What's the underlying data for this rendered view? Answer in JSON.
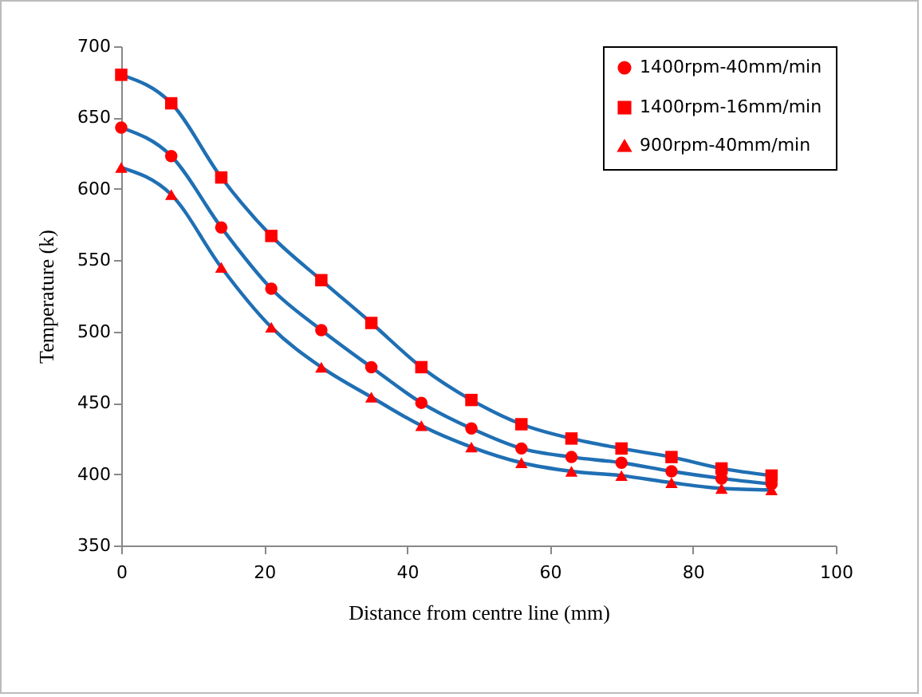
{
  "chart_data": {
    "type": "line",
    "xlabel": "Distance from centre line (mm)",
    "ylabel": "Temperature (k)",
    "x": [
      0,
      7,
      14,
      21,
      28,
      35,
      42,
      49,
      56,
      63,
      70,
      77,
      84,
      91
    ],
    "series": [
      {
        "name": "1400rpm-40mm/min",
        "color": "#ff0000",
        "marker": "circle",
        "values": [
          643,
          623,
          573,
          530,
          501,
          475,
          450,
          432,
          418,
          412,
          408,
          402,
          397,
          393
        ]
      },
      {
        "name": "1400rpm-16mm/min",
        "color": "#ff0000",
        "marker": "square",
        "values": [
          680,
          660,
          608,
          567,
          536,
          506,
          475,
          452,
          435,
          425,
          418,
          412,
          404,
          399
        ]
      },
      {
        "name": "900rpm-40mm/min",
        "color": "#ff0000",
        "marker": "triangle",
        "values": [
          615,
          596,
          545,
          503,
          475,
          454,
          434,
          419,
          408,
          402,
          399,
          394,
          390,
          389
        ]
      }
    ],
    "xlim": [
      0,
      100
    ],
    "xticks": [
      0,
      20,
      40,
      60,
      80,
      100
    ],
    "ylim": [
      350,
      700
    ],
    "yticks": [
      350,
      400,
      450,
      500,
      550,
      600,
      650,
      700
    ],
    "grid": false,
    "legend": "top right"
  }
}
